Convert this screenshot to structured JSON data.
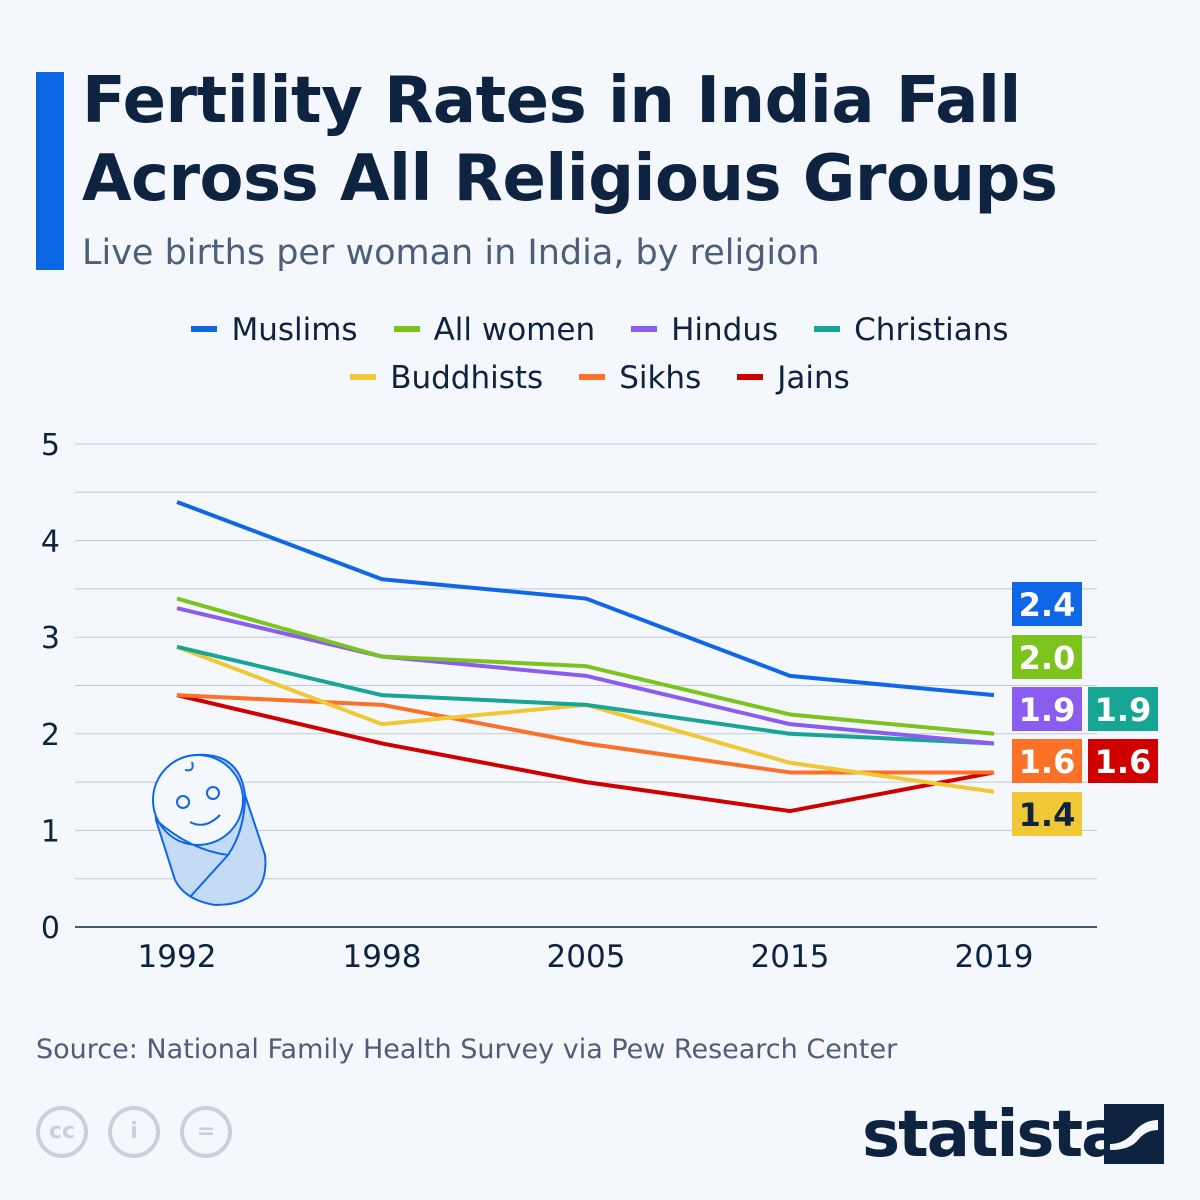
{
  "title_line1": "Fertility Rates in India Fall",
  "title_line2": "Across All Religious Groups",
  "subtitle": "Live births per woman in India, by religion",
  "source": "Source: National Family Health Survey via Pew Research Center",
  "brand": "statista",
  "license_icons": [
    "cc-icon",
    "attribution-icon",
    "no-derivatives-icon"
  ],
  "chart_data": {
    "type": "line",
    "title": "Fertility Rates in India Fall Across All Religious Groups",
    "subtitle": "Live births per woman in India, by religion",
    "categories": [
      "1992",
      "1998",
      "2005",
      "2015",
      "2019"
    ],
    "ylim": [
      0,
      5
    ],
    "yticks": [
      "0",
      "1",
      "2",
      "3",
      "4",
      "5"
    ],
    "grid": true,
    "legend": "top",
    "series": [
      {
        "name": "Muslims",
        "color": "#0f67e8",
        "values": [
          4.4,
          3.6,
          3.4,
          2.6,
          2.4
        ],
        "end_label": "2.4"
      },
      {
        "name": "All women",
        "color": "#7dc31e",
        "values": [
          3.4,
          2.8,
          2.7,
          2.2,
          2.0
        ],
        "end_label": "2.0"
      },
      {
        "name": "Hindus",
        "color": "#8b5cf0",
        "values": [
          3.3,
          2.8,
          2.6,
          2.1,
          1.9
        ],
        "end_label": "1.9"
      },
      {
        "name": "Christians",
        "color": "#17a596",
        "values": [
          2.9,
          2.4,
          2.3,
          2.0,
          1.9
        ],
        "end_label": "1.9"
      },
      {
        "name": "Buddhists",
        "color": "#f0c835",
        "values": [
          2.9,
          2.1,
          2.3,
          1.7,
          1.4
        ],
        "end_label": "1.4"
      },
      {
        "name": "Sikhs",
        "color": "#fc7128",
        "values": [
          2.4,
          2.3,
          1.9,
          1.6,
          1.6
        ],
        "end_label": "1.6"
      },
      {
        "name": "Jains",
        "color": "#d00000",
        "values": [
          2.4,
          1.9,
          1.5,
          1.2,
          1.6
        ],
        "end_label": "1.6"
      }
    ]
  }
}
